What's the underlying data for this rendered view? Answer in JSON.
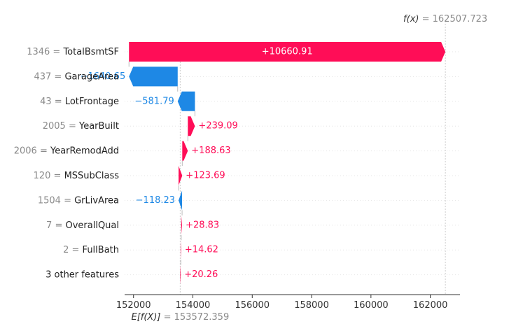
{
  "chart_data": {
    "type": "waterfall",
    "base_value": 153572.359,
    "output_value": 162507.723,
    "fx_label": "f(x)",
    "fx_value_text": "162507.723",
    "efx_label": "E[f(X)]",
    "efx_value_text": "153572.359",
    "xlim": [
      151700,
      163000
    ],
    "x_ticks": [
      152000,
      154000,
      156000,
      158000,
      160000,
      162000
    ],
    "colors": {
      "positive": "#ff0d57",
      "negative": "#1e88e5"
    },
    "features": [
      {
        "value": "1346",
        "name": "TotalBsmtSF",
        "contribution": 10660.91,
        "label": "+10660.91"
      },
      {
        "value": "437",
        "name": "GarageArea",
        "contribution": -1640.65,
        "label": "−1640.65"
      },
      {
        "value": "43",
        "name": "LotFrontage",
        "contribution": -581.79,
        "label": "−581.79"
      },
      {
        "value": "2005",
        "name": "YearBuilt",
        "contribution": 239.09,
        "label": "+239.09"
      },
      {
        "value": "2006",
        "name": "YearRemodAdd",
        "contribution": 188.63,
        "label": "+188.63"
      },
      {
        "value": "120",
        "name": "MSSubClass",
        "contribution": 123.69,
        "label": "+123.69"
      },
      {
        "value": "1504",
        "name": "GrLivArea",
        "contribution": -118.23,
        "label": "−118.23"
      },
      {
        "value": "7",
        "name": "OverallQual",
        "contribution": 28.83,
        "label": "+28.83"
      },
      {
        "value": "2",
        "name": "FullBath",
        "contribution": 14.62,
        "label": "+14.62"
      },
      {
        "value": "",
        "name": "3 other features",
        "contribution": 20.26,
        "label": "+20.26"
      }
    ]
  }
}
